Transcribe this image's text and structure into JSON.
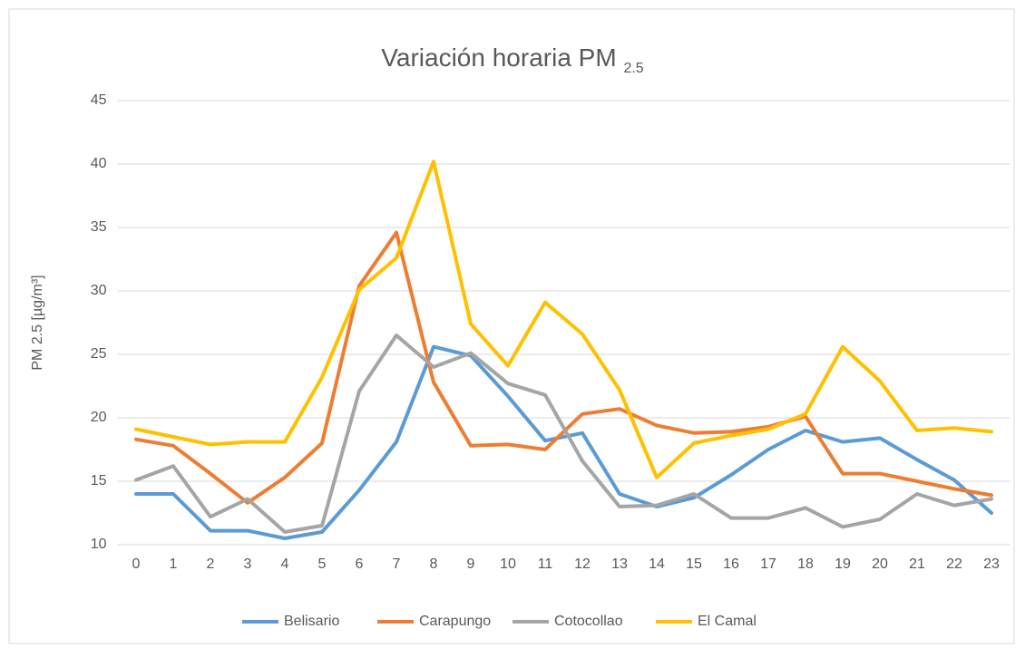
{
  "chart_data": {
    "type": "line",
    "title": "Variación horaria PM",
    "title_subscript": "2.5",
    "y_label": "PM 2.5 [µg/m³]",
    "categories": [
      "0",
      "1",
      "2",
      "3",
      "4",
      "5",
      "6",
      "7",
      "8",
      "9",
      "10",
      "11",
      "12",
      "13",
      "14",
      "15",
      "16",
      "17",
      "18",
      "19",
      "20",
      "21",
      "22",
      "23"
    ],
    "series": [
      {
        "name": "Belisario",
        "color": "#5b9bd5",
        "values": [
          14.0,
          14.0,
          11.1,
          11.1,
          10.5,
          11.0,
          14.3,
          18.1,
          25.6,
          24.9,
          21.7,
          18.2,
          18.8,
          14.0,
          13.0,
          13.7,
          15.5,
          17.5,
          19.0,
          18.1,
          18.4,
          16.7,
          15.1,
          12.5
        ]
      },
      {
        "name": "Carapungo",
        "color": "#ed7d31",
        "values": [
          18.3,
          17.8,
          15.6,
          13.3,
          15.3,
          18.0,
          30.4,
          34.6,
          22.8,
          17.8,
          17.9,
          17.5,
          20.3,
          20.7,
          19.4,
          18.8,
          18.9,
          19.3,
          20.1,
          15.6,
          15.6,
          15.0,
          14.4,
          13.9
        ]
      },
      {
        "name": "Cotocollao",
        "color": "#a5a5a5",
        "values": [
          15.1,
          16.2,
          12.2,
          13.6,
          11.0,
          11.5,
          22.1,
          26.5,
          24.0,
          25.1,
          22.7,
          21.8,
          16.6,
          13.0,
          13.1,
          14.0,
          12.1,
          12.1,
          12.9,
          11.4,
          12.0,
          14.0,
          13.1,
          13.6
        ]
      },
      {
        "name": "El Camal",
        "color": "#ffc000",
        "values": [
          19.1,
          18.5,
          17.9,
          18.1,
          18.1,
          23.2,
          30.1,
          32.6,
          40.2,
          27.4,
          24.1,
          29.1,
          26.6,
          22.2,
          15.3,
          18.0,
          18.6,
          19.1,
          20.3,
          25.6,
          22.9,
          19.0,
          19.2,
          18.9
        ]
      }
    ],
    "ylim": [
      10,
      45
    ],
    "yticks": [
      10,
      15,
      20,
      25,
      30,
      35,
      40,
      45
    ],
    "grid": true,
    "legend": "bottom"
  }
}
